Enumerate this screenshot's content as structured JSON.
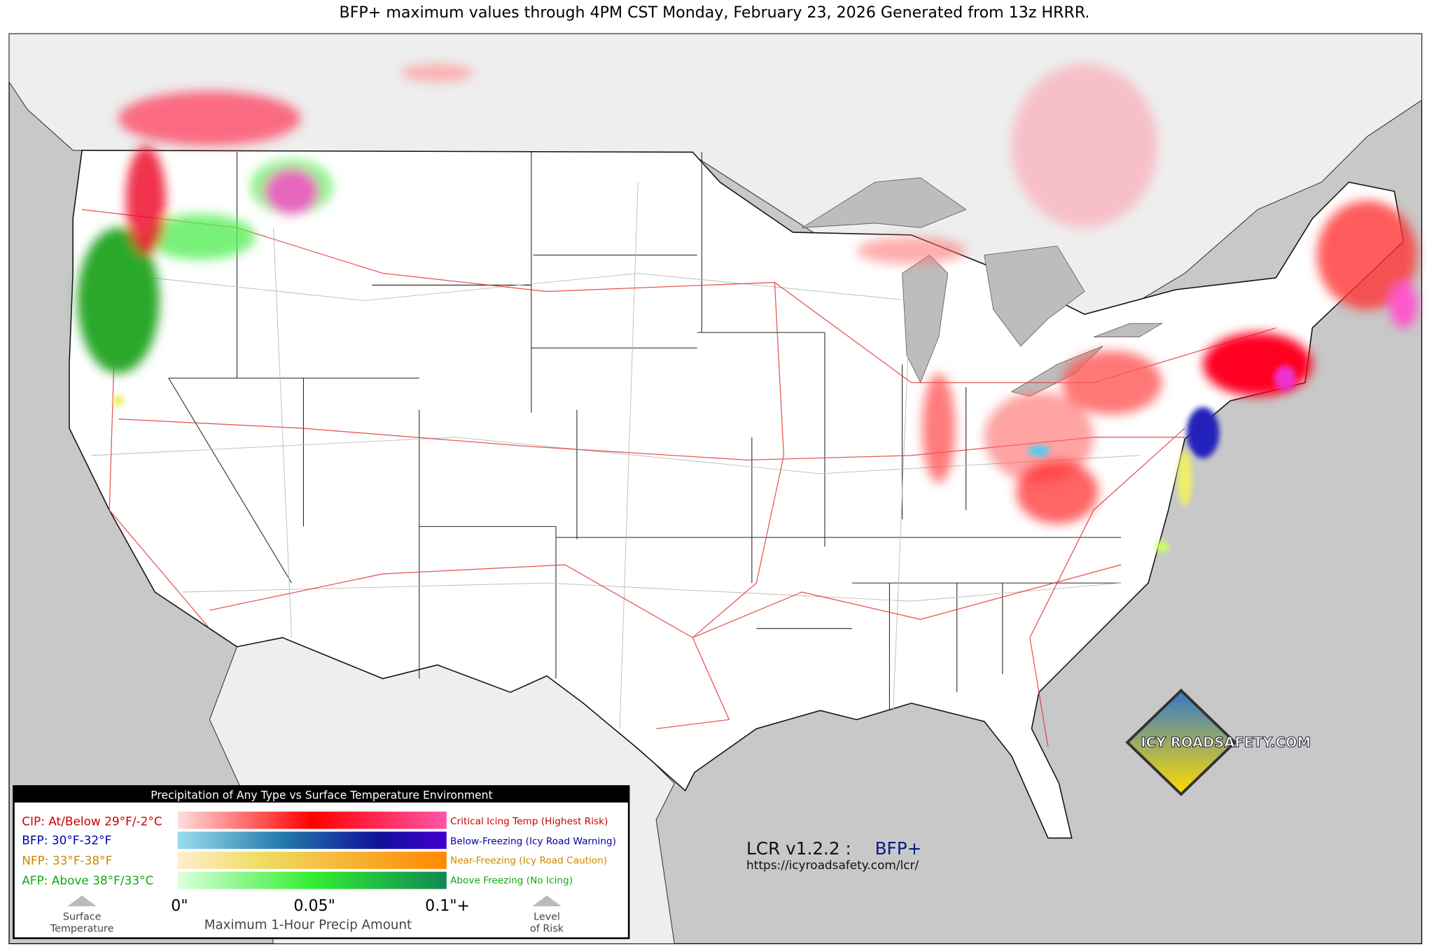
{
  "title": "BFP+ maximum values through 4PM CST Monday, February 23, 2026 Generated from 13z HRRR.",
  "legend": {
    "title": "Precipitation of Any Type vs Surface Temperature Environment",
    "rows": [
      {
        "label": "CIP: At/Below 29°F/-2°C",
        "description": "Critical Icing Temp (Highest Risk)"
      },
      {
        "label": "BFP: 30°F-32°F",
        "description": "Below-Freezing (Icy Road Warning)"
      },
      {
        "label": "NFP: 33°F-38°F",
        "description": "Near-Freezing (Icy Road Caution)"
      },
      {
        "label": "AFP: Above 38°F/33°C",
        "description": "Above Freezing (No Icing)"
      }
    ],
    "scale_labels": [
      "0\"",
      "0.05\"",
      "0.1\"+"
    ],
    "axis_label": "Maximum 1-Hour Precip Amount",
    "left_arrow": [
      "Surface",
      "Temperature"
    ],
    "right_arrow": [
      "Level",
      "of Risk"
    ]
  },
  "product": {
    "version": "LCR v1.2.2 :",
    "name": "BFP+",
    "url": "https://icyroadsafety.com/lcr/"
  },
  "logo": "ICY ROADSAFETY.COM"
}
